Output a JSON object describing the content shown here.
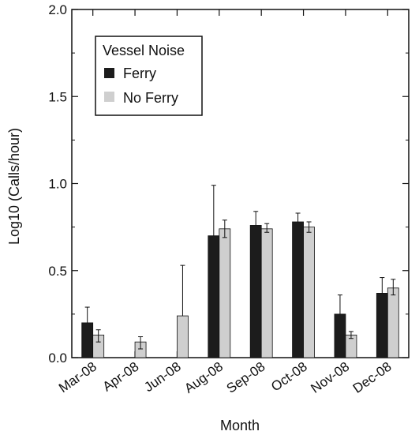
{
  "chart_data": {
    "type": "bar",
    "title": "",
    "xlabel": "Month",
    "ylabel": "Log10 (Calls/hour)",
    "ylim": [
      0,
      2.0
    ],
    "yticks": [
      "0.0",
      "0.5",
      "1.0",
      "1.5",
      "2.0"
    ],
    "grid": false,
    "legend_title": "Vessel Noise",
    "legend_position": "top-left",
    "categories": [
      "Mar-08",
      "Apr-08",
      "Jun-08",
      "Aug-08",
      "Sep-08",
      "Oct-08",
      "Nov-08",
      "Dec-08"
    ],
    "series": [
      {
        "name": "Ferry",
        "color": "#1c1c1c",
        "values": [
          0.2,
          0.0,
          0.0,
          0.7,
          0.76,
          0.78,
          0.25,
          0.37
        ],
        "error_upper": [
          0.29,
          null,
          null,
          0.99,
          0.84,
          0.83,
          0.36,
          0.46
        ]
      },
      {
        "name": "No Ferry",
        "color": "#cfcfcf",
        "values": [
          0.13,
          0.09,
          0.24,
          0.74,
          0.74,
          0.75,
          0.13,
          0.4
        ],
        "error_lower": [
          0.09,
          0.05,
          null,
          0.69,
          0.72,
          0.72,
          0.11,
          0.36
        ],
        "error_upper": [
          0.16,
          0.12,
          0.53,
          0.79,
          0.77,
          0.78,
          0.15,
          0.45
        ]
      }
    ]
  }
}
